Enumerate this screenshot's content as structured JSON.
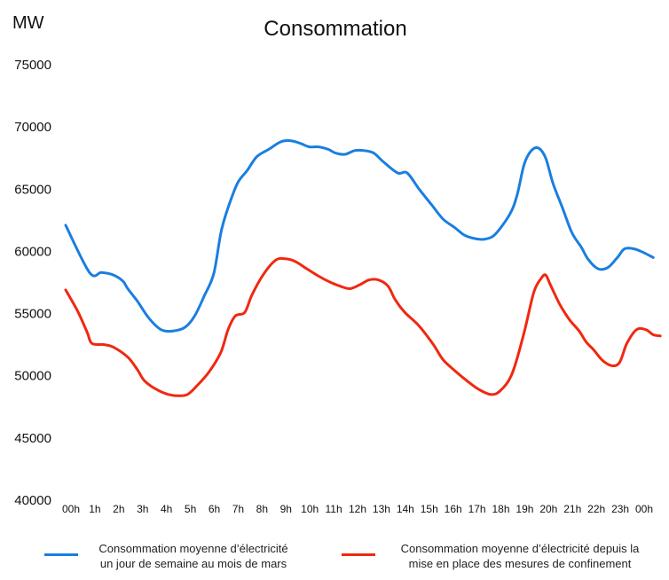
{
  "chart_data": {
    "type": "line",
    "title": "Consommation",
    "ylabel": "MW",
    "xlabel": "",
    "ylim": [
      40000,
      75000
    ],
    "yticks": [
      40000,
      45000,
      50000,
      55000,
      60000,
      65000,
      70000,
      75000
    ],
    "ytick_labels": [
      "40000",
      "45000",
      "50000",
      "55000",
      "60000",
      "65000",
      "70000",
      "75000"
    ],
    "x": [
      0,
      1,
      2,
      3,
      4,
      5,
      6,
      7,
      8,
      9,
      10,
      11,
      12,
      13,
      14,
      15,
      16,
      17,
      18,
      19,
      20,
      21,
      22,
      23,
      24
    ],
    "categories": [
      "00h",
      "1h",
      "2h",
      "3h",
      "4h",
      "5h",
      "6h",
      "7h",
      "8h",
      "9h",
      "10h",
      "11h",
      "12h",
      "13h",
      "14h",
      "15h",
      "16h",
      "17h",
      "18h",
      "19h",
      "20h",
      "21h",
      "22h",
      "23h",
      "00h"
    ],
    "grid": false,
    "legend_position": "bottom",
    "series": [
      {
        "name": "Consommation moyenne d’électricité un jour de semaine au mois de mars",
        "legend_line1": "Consommation moyenne d’électricité",
        "legend_line2": "un jour de semaine au mois de mars",
        "color": "#1a7ee0",
        "points": [
          [
            0,
            62100
          ],
          [
            1,
            58300
          ],
          [
            1.5,
            58300
          ],
          [
            2,
            58100
          ],
          [
            2.4,
            57600
          ],
          [
            2.6,
            57000
          ],
          [
            3,
            56000
          ],
          [
            3.5,
            54600
          ],
          [
            4,
            53700
          ],
          [
            4.5,
            53600
          ],
          [
            5,
            53900
          ],
          [
            5.4,
            54800
          ],
          [
            5.8,
            56400
          ],
          [
            6.2,
            58200
          ],
          [
            6.5,
            61500
          ],
          [
            6.8,
            63500
          ],
          [
            7.2,
            65500
          ],
          [
            7.6,
            66500
          ],
          [
            8,
            67600
          ],
          [
            8.5,
            68200
          ],
          [
            9,
            68800
          ],
          [
            9.4,
            68900
          ],
          [
            9.8,
            68700
          ],
          [
            10.2,
            68400
          ],
          [
            10.6,
            68400
          ],
          [
            11,
            68200
          ],
          [
            11.3,
            67900
          ],
          [
            11.7,
            67800
          ],
          [
            12.1,
            68100
          ],
          [
            12.5,
            68100
          ],
          [
            12.9,
            67900
          ],
          [
            13.3,
            67200
          ],
          [
            13.9,
            66300
          ],
          [
            14.3,
            66300
          ],
          [
            14.8,
            65000
          ],
          [
            15.3,
            63800
          ],
          [
            15.8,
            62600
          ],
          [
            16.3,
            61900
          ],
          [
            16.7,
            61300
          ],
          [
            17.2,
            61000
          ],
          [
            17.6,
            61000
          ],
          [
            18,
            61400
          ],
          [
            18.6,
            63000
          ],
          [
            18.9,
            64500
          ],
          [
            19.2,
            67000
          ],
          [
            19.5,
            68100
          ],
          [
            19.8,
            68300
          ],
          [
            20.1,
            67500
          ],
          [
            20.4,
            65500
          ],
          [
            20.8,
            63500
          ],
          [
            21.2,
            61500
          ],
          [
            21.6,
            60300
          ],
          [
            21.9,
            59300
          ],
          [
            22.3,
            58600
          ],
          [
            22.7,
            58700
          ],
          [
            23.1,
            59500
          ],
          [
            23.4,
            60200
          ],
          [
            23.8,
            60200
          ],
          [
            24.2,
            59900
          ],
          [
            24.6,
            59500
          ]
        ]
      },
      {
        "name": "Consommation moyenne d’électricité depuis la mise en place des mesures de confinement",
        "legend_line1": "Consommation moyenne d’électricité depuis la",
        "legend_line2": "mise en place des mesures de confinement",
        "color": "#f02810",
        "points": [
          [
            0,
            56900
          ],
          [
            0.5,
            55200
          ],
          [
            0.9,
            53500
          ],
          [
            1.1,
            52600
          ],
          [
            1.6,
            52500
          ],
          [
            2,
            52300
          ],
          [
            2.6,
            51500
          ],
          [
            3,
            50500
          ],
          [
            3.3,
            49600
          ],
          [
            3.8,
            48900
          ],
          [
            4.3,
            48500
          ],
          [
            4.7,
            48400
          ],
          [
            5.1,
            48500
          ],
          [
            5.5,
            49200
          ],
          [
            6,
            50300
          ],
          [
            6.5,
            51900
          ],
          [
            6.8,
            53700
          ],
          [
            7.1,
            54800
          ],
          [
            7.5,
            55100
          ],
          [
            7.8,
            56500
          ],
          [
            8.3,
            58200
          ],
          [
            8.8,
            59300
          ],
          [
            9.2,
            59400
          ],
          [
            9.6,
            59200
          ],
          [
            10.1,
            58600
          ],
          [
            10.6,
            58000
          ],
          [
            11.1,
            57500
          ],
          [
            11.5,
            57200
          ],
          [
            11.9,
            57000
          ],
          [
            12.3,
            57300
          ],
          [
            12.7,
            57700
          ],
          [
            13.1,
            57700
          ],
          [
            13.5,
            57200
          ],
          [
            13.8,
            56100
          ],
          [
            14.2,
            55100
          ],
          [
            14.8,
            54000
          ],
          [
            15.4,
            52500
          ],
          [
            15.8,
            51300
          ],
          [
            16.3,
            50400
          ],
          [
            16.8,
            49600
          ],
          [
            17.3,
            48900
          ],
          [
            17.8,
            48500
          ],
          [
            18.2,
            48800
          ],
          [
            18.7,
            50200
          ],
          [
            19.2,
            53500
          ],
          [
            19.6,
            56700
          ],
          [
            19.9,
            57800
          ],
          [
            20.1,
            58100
          ],
          [
            20.3,
            57300
          ],
          [
            20.7,
            55700
          ],
          [
            21.1,
            54500
          ],
          [
            21.5,
            53600
          ],
          [
            21.8,
            52700
          ],
          [
            22.1,
            52100
          ],
          [
            22.5,
            51200
          ],
          [
            22.9,
            50800
          ],
          [
            23.2,
            51100
          ],
          [
            23.5,
            52600
          ],
          [
            23.9,
            53700
          ],
          [
            24.3,
            53700
          ],
          [
            24.6,
            53300
          ],
          [
            24.9,
            53200
          ]
        ]
      }
    ]
  }
}
